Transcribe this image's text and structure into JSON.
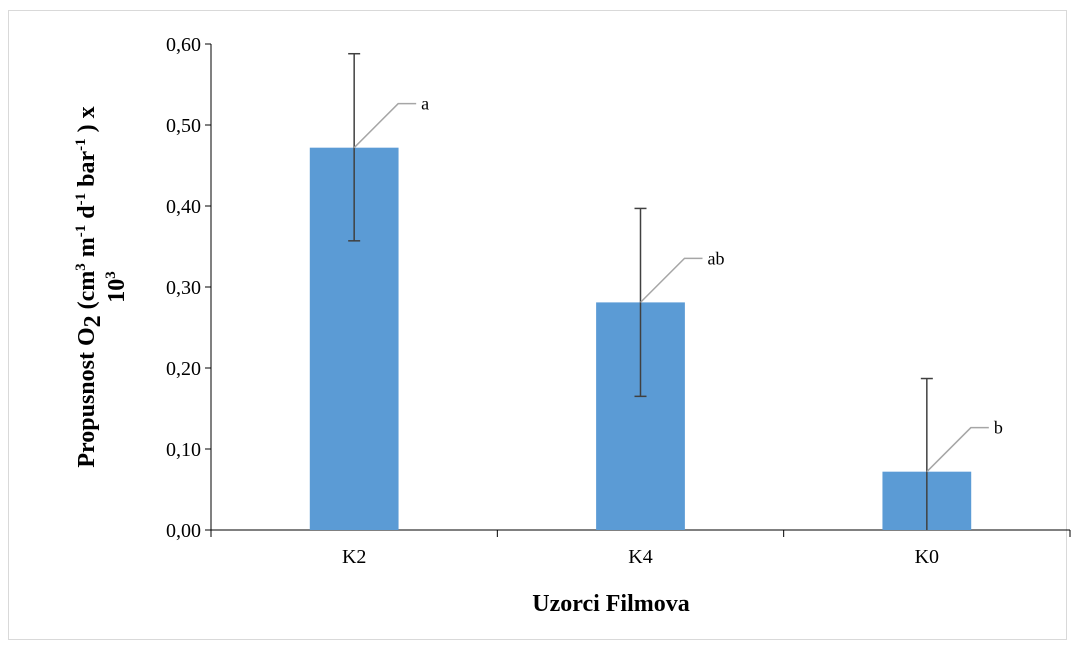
{
  "chart_data": {
    "type": "bar",
    "categories": [
      "K2",
      "K4",
      "K0"
    ],
    "values": [
      0.472,
      0.281,
      0.072
    ],
    "error_upper": [
      0.588,
      0.397,
      0.187
    ],
    "error_lower": [
      0.357,
      0.165,
      0.0
    ],
    "annotations": [
      "a",
      "ab",
      "b"
    ],
    "xlabel": "Uzorci Filmova",
    "ylabel": {
      "line1": {
        "p1": "Propusnost O",
        "sub_O": "2",
        "p2": " (cm",
        "sup_cm": "3",
        "p3": " m",
        "sup_m": "-1",
        "p4": " d",
        "sup_d": "-1",
        "p5": " bar",
        "sup_bar": "-1",
        "p6": " ) x"
      },
      "line2": {
        "base": "10",
        "sup": "3"
      }
    },
    "ylim": [
      0,
      0.6
    ],
    "yticks": [
      "0,00",
      "0,10",
      "0,20",
      "0,30",
      "0,40",
      "0,50",
      "0,60"
    ],
    "grid": false,
    "bar_color": "#5b9bd5"
  }
}
